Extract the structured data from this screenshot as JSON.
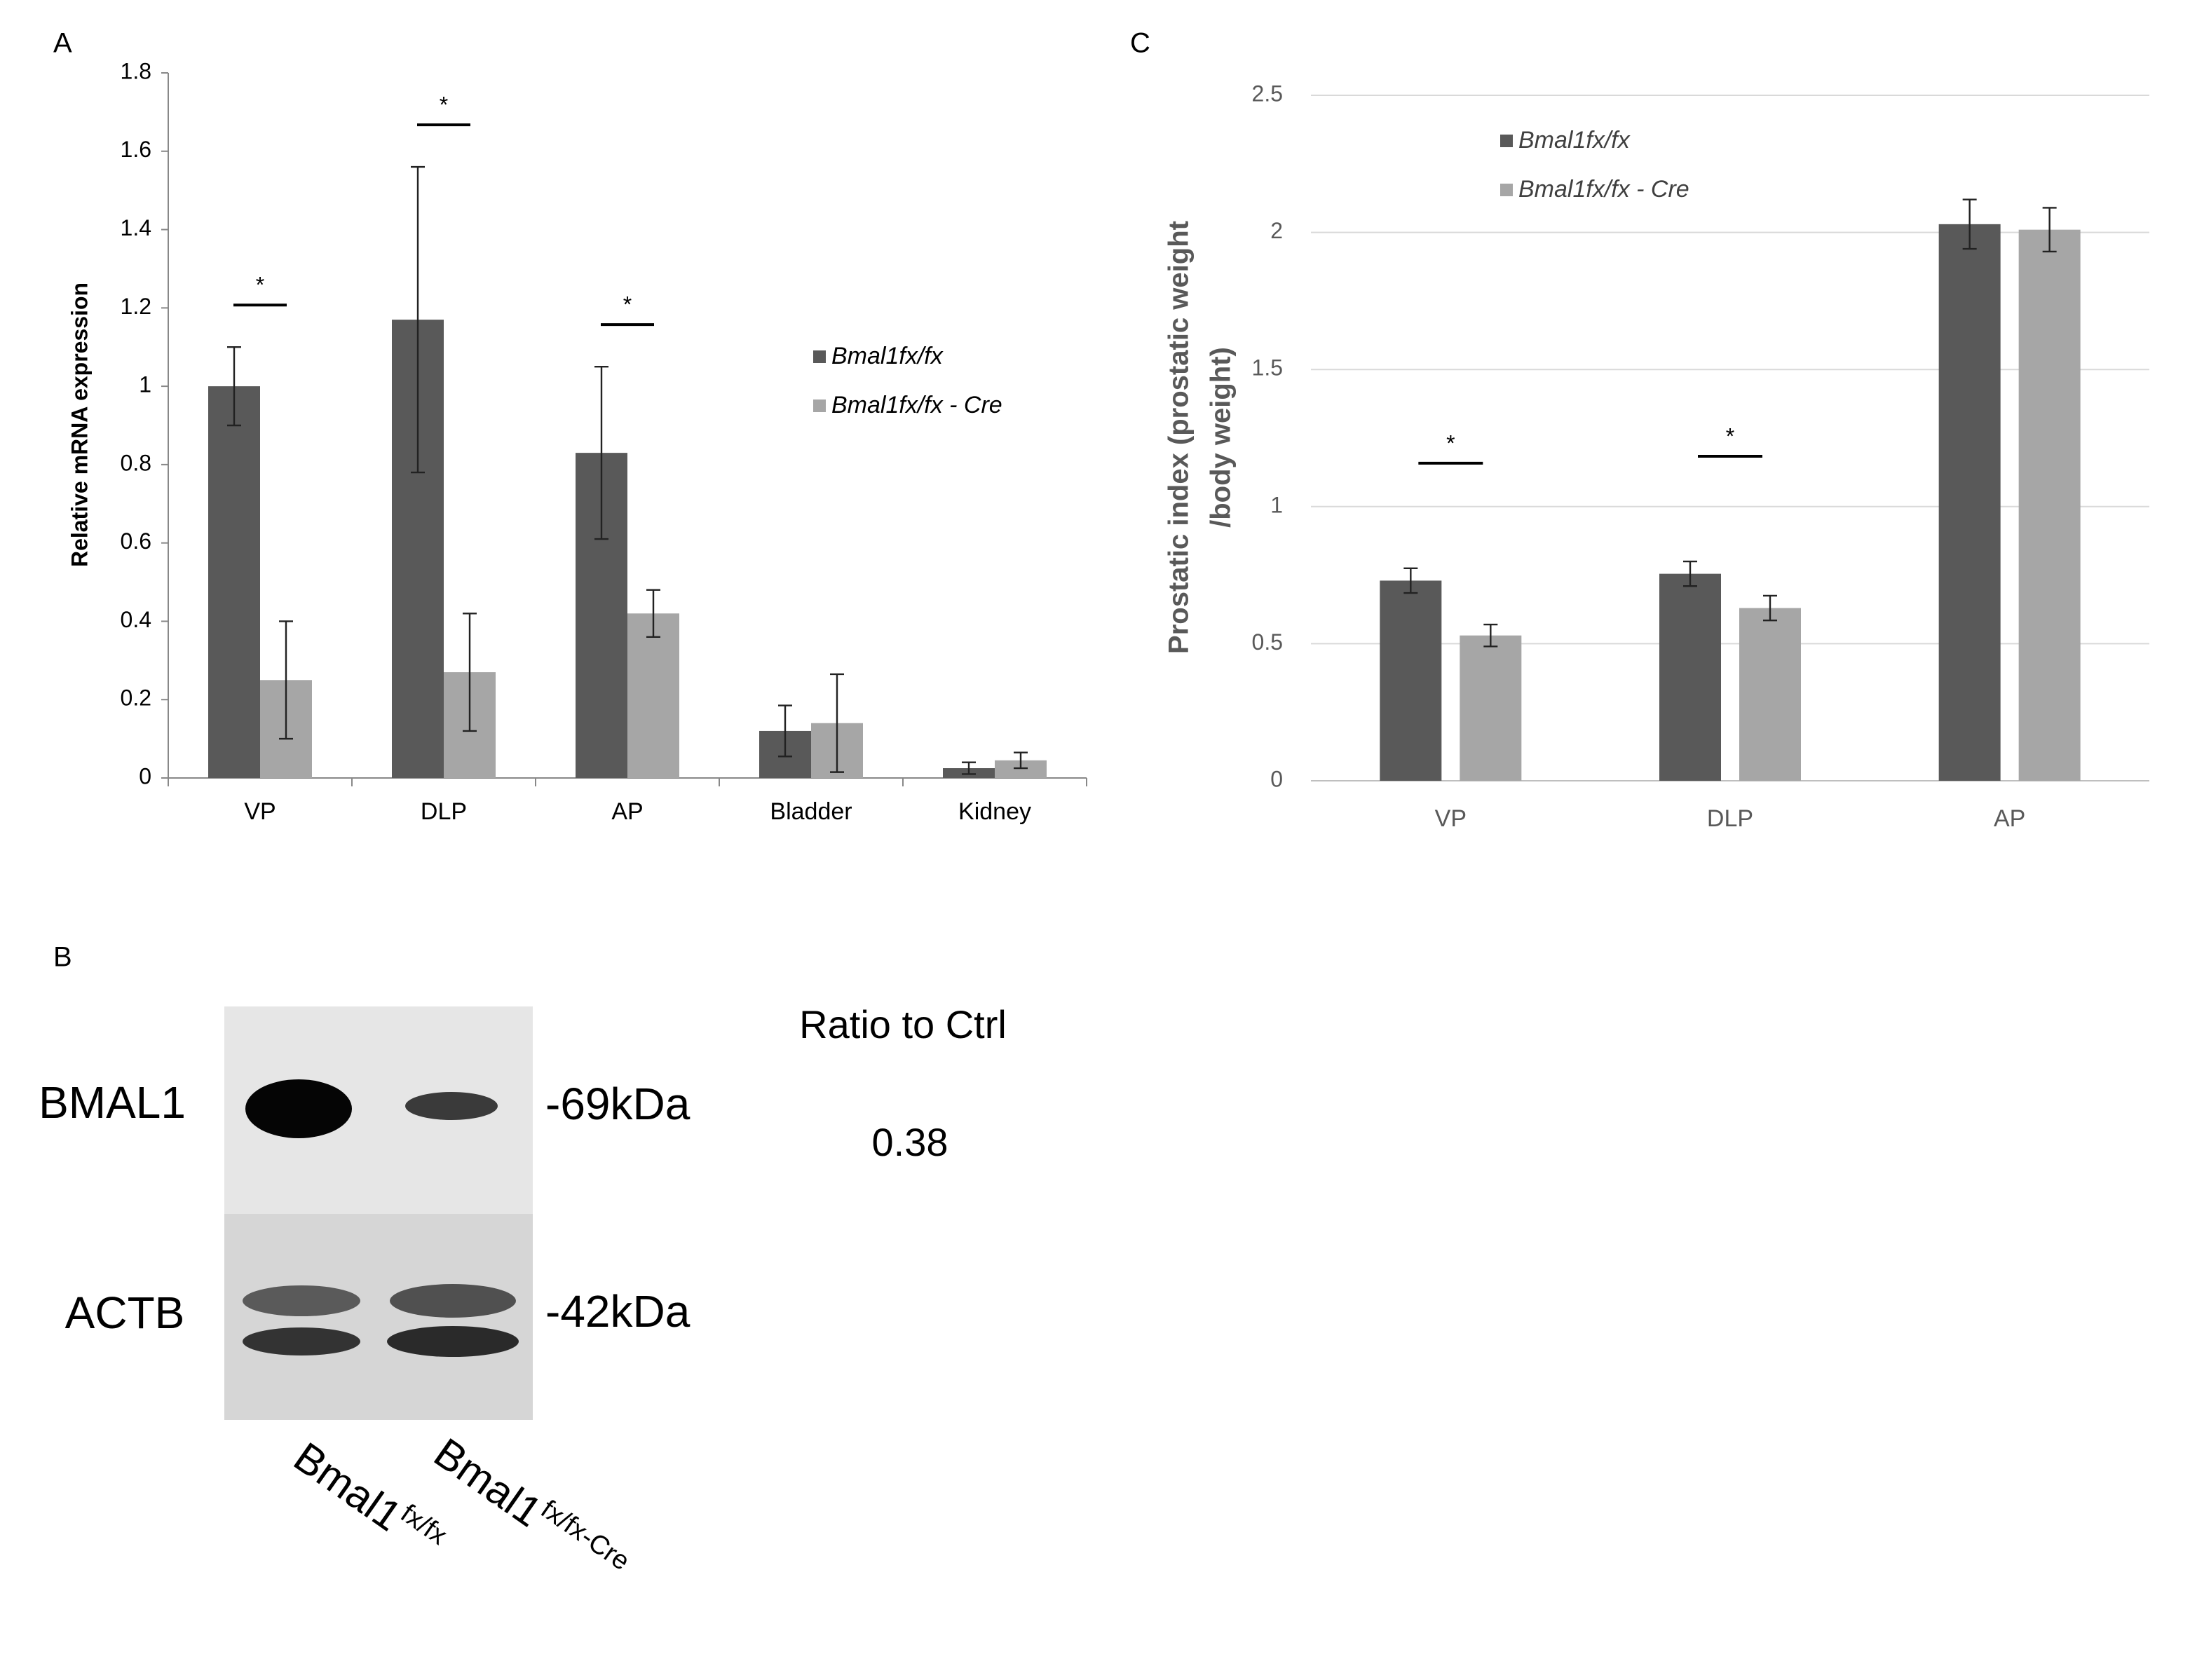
{
  "chart_data": [
    {
      "type": "bar",
      "panel_label": "A",
      "ylabel": "Relative mRNA expression",
      "categories": [
        "VP",
        "DLP",
        "AP",
        "Bladder",
        "Kidney"
      ],
      "series": [
        {
          "name": "Bmal1fx/fx",
          "color": "#595959",
          "values": [
            1.0,
            1.17,
            0.83,
            0.12,
            0.025
          ],
          "errors": [
            0.1,
            0.39,
            0.22,
            0.065,
            0.015
          ]
        },
        {
          "name": "Bmal1fx/fx - Cre",
          "color": "#a6a6a6",
          "values": [
            0.25,
            0.27,
            0.42,
            0.14,
            0.045
          ],
          "errors": [
            0.15,
            0.15,
            0.06,
            0.125,
            0.02
          ]
        }
      ],
      "significance": [
        "*",
        "*",
        "*",
        null,
        null
      ],
      "ylim": [
        0,
        1.8
      ],
      "yticks": [
        0,
        0.2,
        0.4,
        0.6,
        0.8,
        1,
        1.2,
        1.4,
        1.6,
        1.8
      ],
      "grid": false
    },
    {
      "type": "bar",
      "panel_label": "C",
      "ylabel": [
        "Prostatic index (prostatic weight",
        "/body weight)"
      ],
      "categories": [
        "VP",
        "DLP",
        "AP"
      ],
      "series": [
        {
          "name": "Bmal1fx/fx",
          "color": "#595959",
          "values": [
            0.73,
            0.755,
            2.03
          ],
          "errors": [
            0.045,
            0.045,
            0.09
          ]
        },
        {
          "name": "Bmal1fx/fx - Cre",
          "color": "#a6a6a6",
          "values": [
            0.53,
            0.63,
            2.01
          ],
          "errors": [
            0.04,
            0.045,
            0.08
          ]
        }
      ],
      "significance": [
        "*",
        "*",
        null
      ],
      "ylim": [
        0,
        2.5
      ],
      "yticks": [
        0,
        0.5,
        1,
        1.5,
        2,
        2.5
      ],
      "grid": true
    }
  ],
  "blot": {
    "panel_label": "B",
    "rows": [
      {
        "protein": "BMAL1",
        "size": "-69kDa"
      },
      {
        "protein": "ACTB",
        "size": "-42kDa"
      }
    ],
    "lanes": [
      {
        "gene": "Bmal1",
        "genotype": "fx/fx"
      },
      {
        "gene": "Bmal1",
        "genotype": "fx/fx-Cre"
      }
    ],
    "ratio_header": "Ratio to Ctrl",
    "ratio": "0.38"
  }
}
